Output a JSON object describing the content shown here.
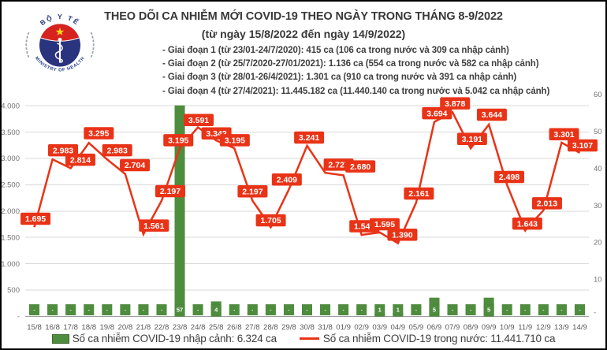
{
  "header": {
    "title": "THEO DÕI CA NHIỄM MỚI COVID-19 THEO NGÀY TRONG THÁNG 8-9/2022",
    "subtitle": "(từ ngày 15/8/2022 đến ngày 14/9/2022)",
    "notes": [
      "- Giai đoạn 1 (từ 23/01-24/7/2020): 415 ca (106 ca trong nước và 309 ca nhập cảnh)",
      "- Giai đoạn 2 (từ 25/7/2020-27/01/2021): 1.136 ca (554 ca trong nước và 582 ca nhập cảnh)",
      "- Giai đoạn 3 (từ 28/01-26/4/2021): 1.301 ca (910 ca trong nước và 391 ca nhập cảnh)",
      "- Giai đoạn 4 (từ 27/4/2021): 11.445.182 ca (11.440.140 ca trong nước và 5.042 ca nhập cảnh)"
    ]
  },
  "logo": {
    "top_text": "BỘ Y TẾ",
    "bottom_text": "MINISTRY OF HEALTH"
  },
  "colors": {
    "line_red": "#e93317",
    "bar_green": "#4f8d3e",
    "bar_green_border": "#4a8239",
    "gridline": "#d9d9d9",
    "axis_line": "#9e9e9e",
    "axis_text": "#737373",
    "cat_text": "#595959"
  },
  "chart_data": {
    "type": "combo",
    "categories": [
      "15/8",
      "16/8",
      "17/8",
      "18/8",
      "19/8",
      "20/8",
      "21/8",
      "22/8",
      "23/8",
      "24/8",
      "25/8",
      "26/8",
      "27/8",
      "28/8",
      "29/8",
      "30/8",
      "31/8",
      "01/9",
      "02/9",
      "03/9",
      "04/9",
      "05/9",
      "06/9",
      "07/9",
      "08/9",
      "09/9",
      "10/9",
      "11/9",
      "12/9",
      "13/9",
      "14/9"
    ],
    "series": [
      {
        "name": "Số ca nhiễm COVID-19 nhập cảnh",
        "type": "bar",
        "axis": "right",
        "values": [
          0,
          0,
          0,
          0,
          0,
          0,
          0,
          0,
          57,
          0,
          4,
          0,
          0,
          0,
          0,
          0,
          0,
          0,
          0,
          1,
          1,
          0,
          5,
          0,
          0,
          5,
          0,
          0,
          0,
          0,
          0
        ],
        "labels": [
          "-",
          "-",
          "-",
          "-",
          "-",
          "-",
          "-",
          "-",
          "57",
          "-",
          "4",
          "-",
          "-",
          "-",
          "-",
          "-",
          "-",
          "-",
          "-",
          "1",
          "1",
          "-",
          "5",
          "-",
          "-",
          "5",
          "-",
          "-",
          "-",
          "-",
          "-"
        ]
      },
      {
        "name": "Số ca nhiễm COVID-19 trong nước",
        "type": "line",
        "axis": "left",
        "values": [
          1695,
          2983,
          2814,
          3295,
          2983,
          2704,
          1561,
          2197,
          3195,
          3591,
          3342,
          3195,
          2197,
          1705,
          2409,
          3241,
          2727,
          2680,
          1548,
          1595,
          1390,
          2161,
          3694,
          3878,
          3191,
          3644,
          2498,
          1643,
          2013,
          3301,
          3107
        ],
        "labels": [
          "1.695",
          "2.983",
          "2.814",
          "3.295",
          "2.983",
          "2.704",
          "1.561",
          "2.197",
          "3.195",
          "3.591",
          "3.342",
          "3.195",
          "2.197",
          "1.705",
          "2.409",
          "3.241",
          "2.727",
          "2.680",
          "1.548",
          "1.595",
          "1.390",
          "2.161",
          "3.694",
          "3.878",
          "3.191",
          "3.644",
          "2.498",
          "1.643",
          "2.013",
          "3.301",
          "3.107"
        ]
      }
    ],
    "left_axis": {
      "ticks": [
        "-",
        "500",
        "1.000",
        "1.500",
        "2.000",
        "2.500",
        "3.000",
        "3.500",
        "4.000"
      ],
      "min": 0,
      "max": 4000
    },
    "right_axis": {
      "ticks": [
        "-",
        "10",
        "20",
        "30",
        "40",
        "50",
        "60"
      ],
      "min": 0,
      "max": 60
    },
    "grid": true,
    "legend_position": "bottom"
  },
  "legend": [
    {
      "label": "Số ca nhiễm COVID-19 nhập cảnh: 6.324 ca",
      "swatch": "green-square"
    },
    {
      "label": "Số ca nhiễm COVID-19 trong nước: 11.441.710 ca",
      "swatch": "red-line"
    }
  ]
}
